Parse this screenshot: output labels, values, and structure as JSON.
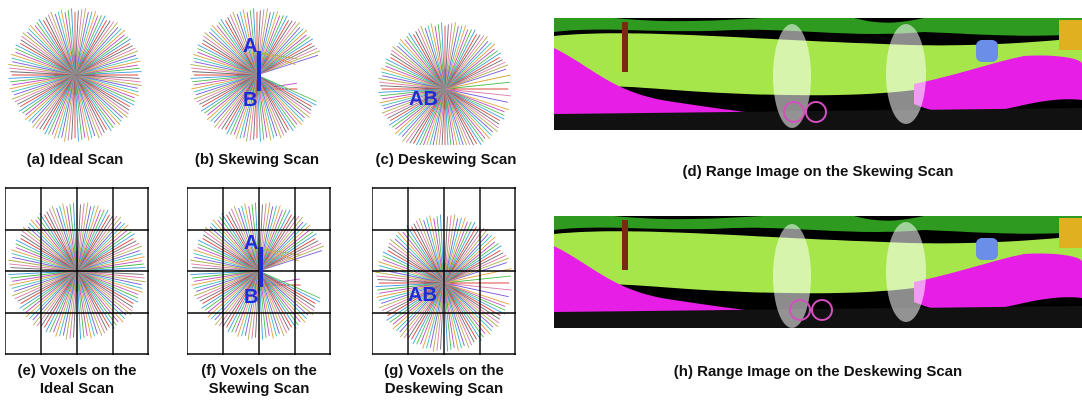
{
  "captions": {
    "a": "(a) Ideal Scan",
    "b": "(b) Skewing Scan",
    "c": "(c) Deskewing Scan",
    "d": "(d) Range Image on the Skewing Scan",
    "e_line1": "(e) Voxels on the",
    "e_line2": "Ideal Scan",
    "f_line1": "(f) Voxels on the",
    "f_line2": "Skewing Scan",
    "g_line1": "(g) Voxels on the",
    "g_line2": "Deskewing Scan",
    "h": "(h) Range Image on the Deskewing Scan"
  },
  "labels": {
    "a": "A",
    "b": "B",
    "ab": "AB"
  },
  "colors": {
    "label_blue": "#1f2bd6",
    "grid": "#000000",
    "vegetation_green": "#a6e64b",
    "tree_green": "#2e9a1f",
    "terrain_magenta": "#e61ee6",
    "sky_black": "#000000"
  }
}
